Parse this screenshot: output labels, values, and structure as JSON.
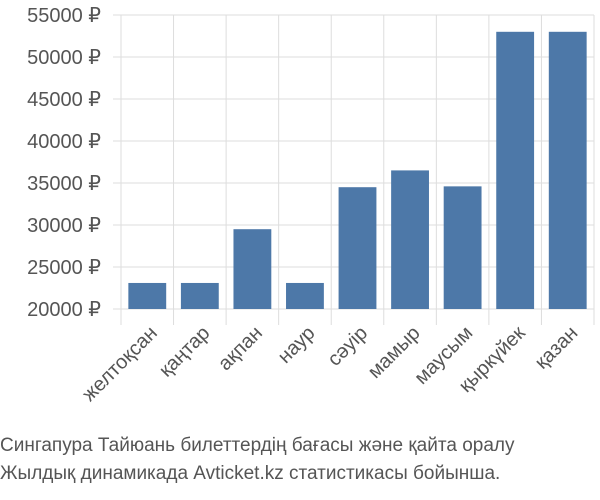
{
  "chart_data": {
    "type": "bar",
    "categories": [
      "желтоқсан",
      "қаңтар",
      "ақпан",
      "наур",
      "сәуір",
      "мамыр",
      "маусым",
      "қыркүйек",
      "қазан"
    ],
    "values": [
      23100,
      23100,
      29500,
      23100,
      34500,
      36500,
      34600,
      53000,
      53000
    ],
    "ylim": [
      20000,
      55000
    ],
    "yticks": [
      20000,
      25000,
      30000,
      35000,
      40000,
      45000,
      50000,
      55000
    ],
    "currency_symbol": "₽",
    "bar_color": "#4d78a8",
    "grid": true
  },
  "caption": {
    "line1": "Сингапура Тайюань билеттердің бағасы және қайта оралу",
    "line2": "Жылдық динамикада Avticket.kz статистикасы бойынша."
  }
}
